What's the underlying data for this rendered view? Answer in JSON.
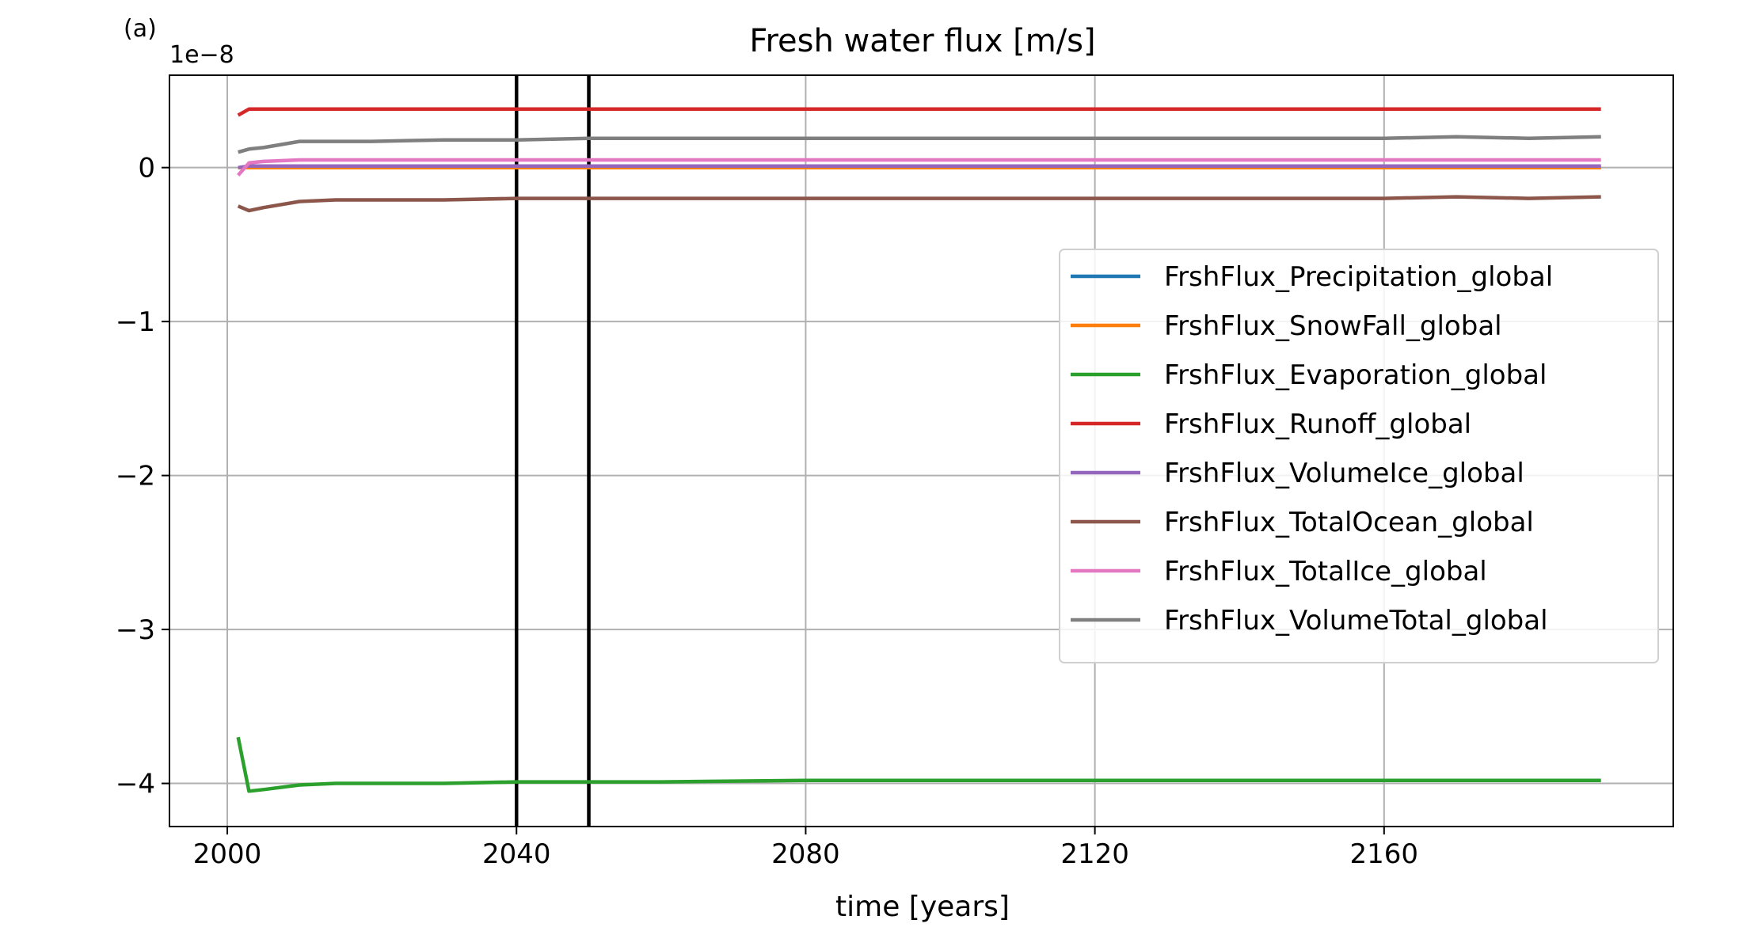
{
  "chart_data": {
    "type": "line",
    "panel_label": "(a)",
    "title": "Fresh water flux [m/s]",
    "xlabel": "time [years]",
    "ylabel": "",
    "y_offset_label": "1e−8",
    "xlim": [
      1992,
      2200
    ],
    "ylim": [
      -4.28,
      0.6
    ],
    "xticks": [
      2000,
      2040,
      2080,
      2120,
      2160
    ],
    "yticks": [
      0,
      -1,
      -2,
      -3,
      -4
    ],
    "ytick_labels": [
      "0",
      "−1",
      "−2",
      "−3",
      "−4"
    ],
    "grid": true,
    "legend_position": "center-right",
    "vlines": [
      {
        "x": 2040,
        "color": "#000000"
      },
      {
        "x": 2050,
        "color": "#000000"
      }
    ],
    "x": [
      2001.5,
      2003,
      2005,
      2010,
      2015,
      2020,
      2030,
      2040,
      2050,
      2060,
      2080,
      2100,
      2120,
      2140,
      2160,
      2170,
      2180,
      2190
    ],
    "series": [
      {
        "name": "FrshFlux_Precipitation_global",
        "color": "#1f77b4",
        "values": [
          0.0,
          0.0,
          0.0,
          0.0,
          0.0,
          0.0,
          0.0,
          0.0,
          0.0,
          0.0,
          0.0,
          0.0,
          0.0,
          0.0,
          0.0,
          0.0,
          0.0,
          0.0
        ]
      },
      {
        "name": "FrshFlux_SnowFall_global",
        "color": "#ff7f0e",
        "values": [
          0.0,
          0.0,
          0.0,
          0.0,
          0.0,
          0.0,
          0.0,
          0.0,
          0.0,
          0.0,
          0.0,
          0.0,
          0.0,
          0.0,
          0.0,
          0.0,
          0.0,
          0.0
        ]
      },
      {
        "name": "FrshFlux_Evaporation_global",
        "color": "#2ca02c",
        "values": [
          -3.7,
          -4.05,
          -4.04,
          -4.01,
          -4.0,
          -4.0,
          -4.0,
          -3.99,
          -3.99,
          -3.99,
          -3.98,
          -3.98,
          -3.98,
          -3.98,
          -3.98,
          -3.98,
          -3.98,
          -3.98
        ]
      },
      {
        "name": "FrshFlux_Runoff_global",
        "color": "#d62728",
        "values": [
          0.34,
          0.38,
          0.38,
          0.38,
          0.38,
          0.38,
          0.38,
          0.38,
          0.38,
          0.38,
          0.38,
          0.38,
          0.38,
          0.38,
          0.38,
          0.38,
          0.38,
          0.38
        ]
      },
      {
        "name": "FrshFlux_VolumeIce_global",
        "color": "#9467bd",
        "values": [
          0.0,
          0.01,
          0.01,
          0.01,
          0.01,
          0.01,
          0.01,
          0.01,
          0.01,
          0.01,
          0.01,
          0.01,
          0.01,
          0.01,
          0.01,
          0.01,
          0.01,
          0.01
        ]
      },
      {
        "name": "FrshFlux_TotalOcean_global",
        "color": "#8c564b",
        "values": [
          -0.25,
          -0.28,
          -0.26,
          -0.22,
          -0.21,
          -0.21,
          -0.21,
          -0.2,
          -0.2,
          -0.2,
          -0.2,
          -0.2,
          -0.2,
          -0.2,
          -0.2,
          -0.19,
          -0.2,
          -0.19
        ]
      },
      {
        "name": "FrshFlux_TotalIce_global",
        "color": "#e377c2",
        "values": [
          -0.05,
          0.03,
          0.04,
          0.05,
          0.05,
          0.05,
          0.05,
          0.05,
          0.05,
          0.05,
          0.05,
          0.05,
          0.05,
          0.05,
          0.05,
          0.05,
          0.05,
          0.05
        ]
      },
      {
        "name": "FrshFlux_VolumeTotal_global",
        "color": "#7f7f7f",
        "values": [
          0.1,
          0.12,
          0.13,
          0.17,
          0.17,
          0.17,
          0.18,
          0.18,
          0.19,
          0.19,
          0.19,
          0.19,
          0.19,
          0.19,
          0.19,
          0.2,
          0.19,
          0.2
        ]
      }
    ]
  }
}
